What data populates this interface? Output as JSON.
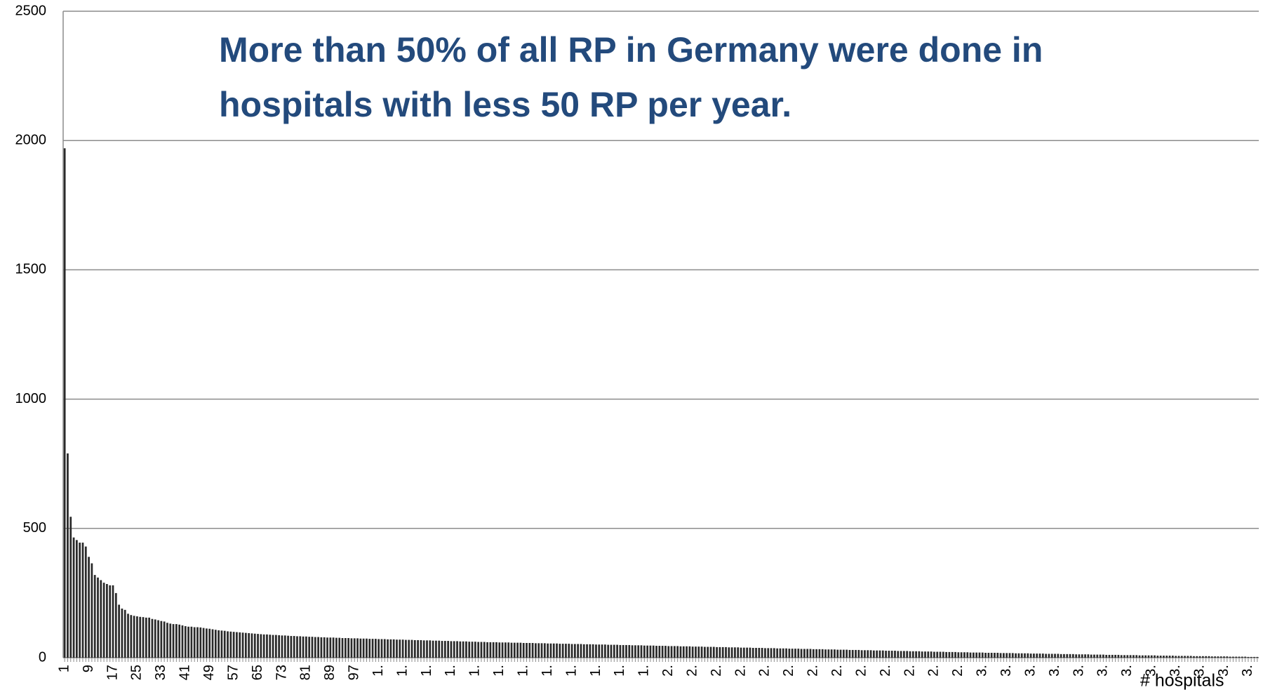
{
  "chart_data": {
    "type": "bar",
    "title": [
      "More than 50% of all RP in Germany were done in",
      "hospitals with less 50 RP per year."
    ],
    "x_label": "# hospitals",
    "color": "#2a2a2a",
    "ylim": [
      0,
      2500
    ],
    "yticks": [
      0,
      500,
      1000,
      1500,
      2000,
      2500
    ],
    "grid": true,
    "categories": [
      "1",
      null,
      null,
      null,
      null,
      null,
      null,
      null,
      "9",
      null,
      null,
      null,
      null,
      null,
      null,
      null,
      "17",
      null,
      null,
      null,
      null,
      null,
      null,
      null,
      "25",
      null,
      null,
      null,
      null,
      null,
      null,
      null,
      "33",
      null,
      null,
      null,
      null,
      null,
      null,
      null,
      "41",
      null,
      null,
      null,
      null,
      null,
      null,
      null,
      "49",
      null,
      null,
      null,
      null,
      null,
      null,
      null,
      "57",
      null,
      null,
      null,
      null,
      null,
      null,
      null,
      "65",
      null,
      null,
      null,
      null,
      null,
      null,
      null,
      "73",
      null,
      null,
      null,
      null,
      null,
      null,
      null,
      "81",
      null,
      null,
      null,
      null,
      null,
      null,
      null,
      "89",
      null,
      null,
      null,
      null,
      null,
      null,
      null,
      "97",
      null,
      null,
      null,
      null,
      null,
      null,
      null,
      "1.",
      null,
      null,
      null,
      null,
      null,
      null,
      null,
      "1.",
      null,
      null,
      null,
      null,
      null,
      null,
      null,
      "1.",
      null,
      null,
      null,
      null,
      null,
      null,
      null,
      "1.",
      null,
      null,
      null,
      null,
      null,
      null,
      null,
      "1.",
      null,
      null,
      null,
      null,
      null,
      null,
      null,
      "1.",
      null,
      null,
      null,
      null,
      null,
      null,
      null,
      "1.",
      null,
      null,
      null,
      null,
      null,
      null,
      null,
      "1.",
      null,
      null,
      null,
      null,
      null,
      null,
      null,
      "1.",
      null,
      null,
      null,
      null,
      null,
      null,
      null,
      "1.",
      null,
      null,
      null,
      null,
      null,
      null,
      null,
      "1.",
      null,
      null,
      null,
      null,
      null,
      null,
      null,
      "1.",
      null,
      null,
      null,
      null,
      null,
      null,
      null,
      "2.",
      null,
      null,
      null,
      null,
      null,
      null,
      null,
      "2.",
      null,
      null,
      null,
      null,
      null,
      null,
      null,
      "2.",
      null,
      null,
      null,
      null,
      null,
      null,
      null,
      "2.",
      null,
      null,
      null,
      null,
      null,
      null,
      null,
      "2.",
      null,
      null,
      null,
      null,
      null,
      null,
      null,
      "2.",
      null,
      null,
      null,
      null,
      null,
      null,
      null,
      "2.",
      null,
      null,
      null,
      null,
      null,
      null,
      null,
      "2.",
      null,
      null,
      null,
      null,
      null,
      null,
      null,
      "2.",
      null,
      null,
      null,
      null,
      null,
      null,
      null,
      "2.",
      null,
      null,
      null,
      null,
      null,
      null,
      null,
      "2.",
      null,
      null,
      null,
      null,
      null,
      null,
      null,
      "2.",
      null,
      null,
      null,
      null,
      null,
      null,
      null,
      "2.",
      null,
      null,
      null,
      null,
      null,
      null,
      null,
      "3.",
      null,
      null,
      null,
      null,
      null,
      null,
      null,
      "3.",
      null,
      null,
      null,
      null,
      null,
      null,
      null,
      "3.",
      null,
      null,
      null,
      null,
      null,
      null,
      null,
      "3.",
      null,
      null,
      null,
      null,
      null,
      null,
      null,
      "3.",
      null,
      null,
      null,
      null,
      null,
      null,
      null,
      "3.",
      null,
      null,
      null,
      null,
      null,
      null,
      null,
      "3.",
      null,
      null,
      null,
      null,
      null,
      null,
      null,
      "3.",
      null,
      null,
      null,
      null,
      null,
      null,
      null,
      "3.",
      null,
      null,
      null,
      null,
      null,
      null,
      null,
      "3.",
      null,
      null,
      null,
      null,
      null,
      null,
      null,
      "3.",
      null,
      null,
      null,
      null,
      null,
      null,
      null,
      "3.",
      null,
      null,
      null
    ],
    "values": [
      1970,
      790,
      545,
      465,
      455,
      445,
      445,
      430,
      390,
      365,
      320,
      310,
      300,
      290,
      285,
      280,
      280,
      250,
      205,
      190,
      185,
      170,
      165,
      162,
      160,
      158,
      157,
      155,
      155,
      150,
      148,
      145,
      142,
      140,
      135,
      132,
      130,
      130,
      128,
      125,
      122,
      120,
      120,
      118,
      118,
      117,
      115,
      113,
      112,
      110,
      108,
      106,
      105,
      104,
      102,
      101,
      100,
      99,
      98,
      97,
      96,
      95,
      94,
      93,
      92,
      91,
      90,
      90,
      89,
      88,
      88,
      87,
      86,
      86,
      85,
      84,
      84,
      83,
      83,
      82,
      82,
      81,
      81,
      80,
      80,
      79,
      79,
      78,
      78,
      78,
      77,
      77,
      76,
      76,
      76,
      75,
      75,
      75,
      74,
      74,
      74,
      73,
      73,
      73,
      72,
      72,
      72,
      71,
      71,
      71,
      70,
      70,
      70,
      69,
      69,
      69,
      68,
      68,
      68,
      67,
      67,
      67,
      66,
      66,
      66,
      65,
      65,
      65,
      64,
      64,
      64,
      63,
      63,
      63,
      62,
      62,
      62,
      61,
      61,
      61,
      60,
      60,
      60,
      60,
      59,
      59,
      59,
      59,
      58,
      58,
      58,
      58,
      57,
      57,
      57,
      57,
      56,
      56,
      56,
      56,
      55,
      55,
      55,
      55,
      54,
      54,
      54,
      54,
      53,
      53,
      53,
      53,
      52,
      52,
      52,
      52,
      51,
      51,
      51,
      51,
      50,
      50,
      50,
      50,
      49,
      49,
      49,
      49,
      48,
      48,
      48,
      48,
      47,
      47,
      47,
      47,
      46,
      46,
      46,
      46,
      45,
      45,
      45,
      45,
      44,
      44,
      44,
      44,
      43,
      43,
      43,
      43,
      42,
      42,
      42,
      42,
      41,
      41,
      41,
      41,
      40,
      40,
      40,
      40,
      39,
      39,
      39,
      39,
      38,
      38,
      38,
      38,
      37,
      37,
      37,
      37,
      36,
      36,
      36,
      36,
      35,
      35,
      35,
      35,
      34,
      34,
      34,
      34,
      33,
      33,
      33,
      33,
      32,
      32,
      32,
      32,
      31,
      31,
      31,
      31,
      30,
      30,
      30,
      30,
      29,
      29,
      29,
      29,
      28,
      28,
      28,
      28,
      27,
      27,
      27,
      27,
      26,
      26,
      26,
      26,
      25,
      25,
      25,
      25,
      24,
      24,
      24,
      24,
      23,
      23,
      23,
      23,
      22,
      22,
      22,
      22,
      21,
      21,
      21,
      21,
      20,
      20,
      20,
      20,
      20,
      19,
      19,
      19,
      19,
      19,
      18,
      18,
      18,
      18,
      18,
      17,
      17,
      17,
      17,
      17,
      16,
      16,
      16,
      16,
      16,
      15,
      15,
      15,
      15,
      15,
      14,
      14,
      14,
      14,
      14,
      13,
      13,
      13,
      13,
      13,
      12,
      12,
      12,
      12,
      12,
      11,
      11,
      11,
      11,
      11,
      10,
      10,
      10,
      10,
      10,
      10,
      9,
      9,
      9,
      9,
      9,
      9,
      8,
      8,
      8,
      8,
      8,
      8,
      7,
      7,
      7,
      7,
      7,
      7,
      6,
      6,
      6,
      6,
      6,
      6,
      5,
      5,
      5,
      5,
      5,
      5,
      4,
      4,
      4,
      4,
      4,
      4,
      3,
      3,
      3,
      3
    ]
  }
}
